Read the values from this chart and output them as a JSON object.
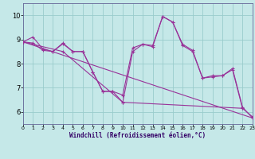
{
  "xlabel": "Windchill (Refroidissement éolien,°C)",
  "bg_color": "#c5e8e8",
  "grid_color": "#99cccc",
  "line_color": "#993399",
  "xlim": [
    0,
    23
  ],
  "ylim": [
    5.5,
    10.5
  ],
  "yticks": [
    6,
    7,
    8,
    9,
    10
  ],
  "xticks": [
    0,
    1,
    2,
    3,
    4,
    5,
    6,
    7,
    8,
    9,
    10,
    11,
    12,
    13,
    14,
    15,
    16,
    17,
    18,
    19,
    20,
    21,
    22,
    23
  ],
  "lines": [
    {
      "x": [
        0,
        1,
        2,
        3,
        4,
        5,
        6,
        7,
        8,
        9,
        10,
        11,
        12,
        13,
        14,
        15,
        16,
        17,
        18,
        19,
        20,
        21,
        22,
        23
      ],
      "y": [
        8.9,
        9.1,
        8.6,
        8.5,
        8.85,
        8.5,
        8.5,
        7.65,
        6.85,
        6.85,
        6.7,
        8.65,
        8.8,
        8.75,
        9.95,
        9.72,
        8.8,
        8.55,
        7.4,
        7.5,
        7.5,
        7.8,
        6.2,
        5.75
      ]
    },
    {
      "x": [
        0,
        1,
        2,
        3,
        4,
        5,
        6,
        7,
        8,
        9,
        10,
        11,
        12,
        13,
        14,
        15,
        16,
        17,
        18,
        19,
        20,
        21,
        22,
        23
      ],
      "y": [
        8.9,
        8.85,
        8.55,
        8.5,
        8.82,
        8.5,
        8.5,
        7.65,
        6.85,
        6.85,
        6.4,
        8.5,
        8.8,
        8.7,
        9.95,
        9.72,
        8.75,
        8.5,
        7.4,
        7.45,
        7.5,
        7.75,
        6.15,
        5.8
      ]
    },
    {
      "x": [
        0,
        4,
        10,
        22
      ],
      "y": [
        8.9,
        8.5,
        6.4,
        6.15
      ]
    },
    {
      "x": [
        0,
        23
      ],
      "y": [
        8.9,
        5.75
      ]
    }
  ]
}
